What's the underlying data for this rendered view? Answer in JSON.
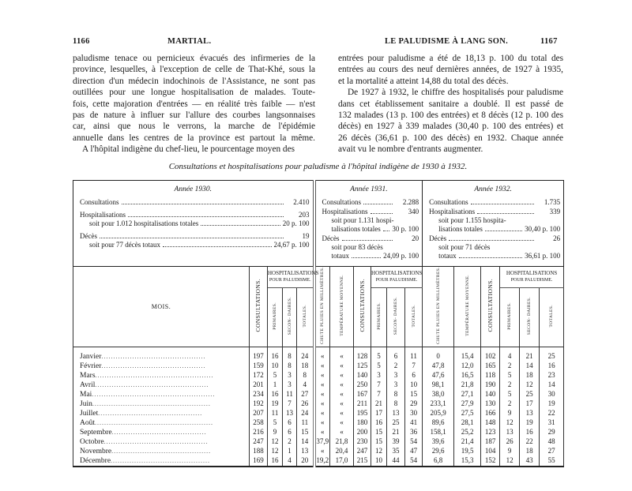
{
  "left_page": {
    "page_number": "1166",
    "running_head": "MARTIAL.",
    "lines": [
      "paludisme tenace ou pernicieux évacués des infirmeries de la",
      "province, lesquelles, à l'exception de celle de That-Khé, sous la",
      "direction d'un médecin indochinois de l'Assistance, ne sont pas",
      "outillées pour une longue hospitalisation de malades. Toute-",
      "fois, cette majoration d'entrées — en réalité très faible — n'est",
      "pas de nature à influer sur l'allure des courbes langsonnaises",
      "car, ainsi que nous le verrons, la marche de l'épidémie",
      "annuelle dans les centres de la province est partout la même.",
      "A l'hôpital indigène du chef-lieu, le pourcentage moyen des"
    ]
  },
  "right_page": {
    "page_number": "1167",
    "running_head": "LE PALUDISME À LANG SON.",
    "lines": [
      "entrées pour paludisme a été de 18,13 p. 100 du total des",
      "entrées au cours des neuf dernières années, de 1927 à 1935,",
      "et la mortalité a atteint 14,88 du total des décès.",
      "De 1927 à 1932, le chiffre des hospitalisés pour paludisme",
      "dans cet établissement sanitaire a doublé. Il est passé de",
      "132 malades (13 p. 100 des entrées) et 8 décès (12 p. 100 des",
      "décès) en 1927 à 339 malades (30,40 p. 100 des entrées) et",
      "26 décès (36,61 p. 100 des décès) en 1932. Chaque année",
      "avait vu le nombre d'entrants augmenter."
    ]
  },
  "table": {
    "caption": "Consultations et hospitalisations pour paludisme à l'hôpital indigène de 1930 à 1932.",
    "years": [
      {
        "title": "Année 1930.",
        "rows": [
          {
            "label": "Consultations",
            "value": "2.410",
            "sub": false
          },
          {
            "label": "Hospitalisations",
            "value": "203",
            "sub": false
          },
          {
            "label": "soit pour 1.012 hospitalisations totales",
            "value": "20 p. 100",
            "sub": true
          },
          {
            "label": "Décès",
            "value": "19",
            "sub": false
          },
          {
            "label": "soit pour 77 décès totaux",
            "value": "24,67 p. 100",
            "sub": true
          }
        ]
      },
      {
        "title": "Année 1931.",
        "rows": [
          {
            "label": "Consultations",
            "value": "2.288",
            "sub": false
          },
          {
            "label": "Hospitalisations",
            "value": "340",
            "sub": false
          },
          {
            "label": "soit pour 1.131 hospi-",
            "value": "",
            "sub": true
          },
          {
            "label": "talisations totales",
            "value": "30 p. 100",
            "sub": true
          },
          {
            "label": "Décès",
            "value": "20",
            "sub": false
          },
          {
            "label": "soit pour 83 décès",
            "value": "",
            "sub": true
          },
          {
            "label": "totaux",
            "value": "24,09 p. 100",
            "sub": true
          }
        ]
      },
      {
        "title": "Année 1932.",
        "rows": [
          {
            "label": "Consultations",
            "value": "1.735",
            "sub": false
          },
          {
            "label": "Hospitalisations",
            "value": "339",
            "sub": false
          },
          {
            "label": "soit pour 1.155 hospita-",
            "value": "",
            "sub": true
          },
          {
            "label": "lisations totales",
            "value": "30,40 p. 100",
            "sub": true
          },
          {
            "label": "Décès",
            "value": "26",
            "sub": false
          },
          {
            "label": "soit pour 71 décès",
            "value": "",
            "sub": true
          },
          {
            "label": "totaux",
            "value": "36,61 p. 100",
            "sub": true
          }
        ]
      }
    ],
    "headers": {
      "mois": "MOIS.",
      "consultations": "CONSULTATIONS.",
      "hospitalisations": "HOSPITALISATIONS",
      "pour_paludisme": "POUR PALUDISME.",
      "primaires": "PRIMAIRES.",
      "secondaires": "SECON- DAIRES.",
      "totales": "TOTALES.",
      "chute_pluies": "CHUTE PLUIES EN MILLIMÈTRES.",
      "temperature": "TEMPÉRATURE MOYENNE."
    },
    "months": [
      "Janvier",
      "Février",
      "Mars",
      "Avril",
      "Mai",
      "Juin",
      "Juillet",
      "Août",
      "Septembre",
      "Octobre",
      "Novembre",
      "Décembre"
    ],
    "y1930": [
      [
        "197",
        "16",
        "8",
        "24"
      ],
      [
        "159",
        "10",
        "8",
        "18"
      ],
      [
        "172",
        "5",
        "3",
        "8"
      ],
      [
        "201",
        "1",
        "3",
        "4"
      ],
      [
        "234",
        "16",
        "11",
        "27"
      ],
      [
        "192",
        "19",
        "7",
        "26"
      ],
      [
        "207",
        "11",
        "13",
        "24"
      ],
      [
        "258",
        "5",
        "6",
        "11"
      ],
      [
        "216",
        "9",
        "6",
        "15"
      ],
      [
        "247",
        "12",
        "2",
        "14"
      ],
      [
        "188",
        "12",
        "1",
        "13"
      ],
      [
        "169",
        "16",
        "4",
        "20"
      ]
    ],
    "y1931": [
      [
        "«",
        "«",
        "128",
        "5",
        "6",
        "11"
      ],
      [
        "«",
        "«",
        "125",
        "5",
        "2",
        "7"
      ],
      [
        "«",
        "«",
        "140",
        "3",
        "3",
        "6"
      ],
      [
        "«",
        "«",
        "250",
        "7",
        "3",
        "10"
      ],
      [
        "«",
        "«",
        "167",
        "7",
        "8",
        "15"
      ],
      [
        "«",
        "«",
        "211",
        "21",
        "8",
        "29"
      ],
      [
        "«",
        "«",
        "195",
        "17",
        "13",
        "30"
      ],
      [
        "«",
        "«",
        "180",
        "16",
        "25",
        "41"
      ],
      [
        "«",
        "«",
        "200",
        "15",
        "21",
        "36"
      ],
      [
        "37,9",
        "21,8",
        "230",
        "15",
        "39",
        "54"
      ],
      [
        "«",
        "20,4",
        "247",
        "12",
        "35",
        "47"
      ],
      [
        "19,2",
        "17,0",
        "215",
        "10",
        "44",
        "54"
      ]
    ],
    "y1932": [
      [
        "0",
        "15,4",
        "102",
        "4",
        "21",
        "25"
      ],
      [
        "47,8",
        "12,0",
        "165",
        "2",
        "14",
        "16"
      ],
      [
        "47,6",
        "16,5",
        "118",
        "5",
        "18",
        "23"
      ],
      [
        "98,1",
        "21,8",
        "190",
        "2",
        "12",
        "14"
      ],
      [
        "38,0",
        "27,1",
        "140",
        "5",
        "25",
        "30"
      ],
      [
        "233,1",
        "27,9",
        "130",
        "2",
        "17",
        "19"
      ],
      [
        "205,9",
        "27,5",
        "166",
        "9",
        "13",
        "22"
      ],
      [
        "89,6",
        "28,1",
        "148",
        "12",
        "19",
        "31"
      ],
      [
        "158,1",
        "25,2",
        "123",
        "13",
        "16",
        "29"
      ],
      [
        "39,6",
        "21,4",
        "187",
        "26",
        "22",
        "48"
      ],
      [
        "29,6",
        "19,5",
        "104",
        "9",
        "18",
        "27"
      ],
      [
        "6,8",
        "15,3",
        "152",
        "12",
        "43",
        "55"
      ]
    ]
  }
}
